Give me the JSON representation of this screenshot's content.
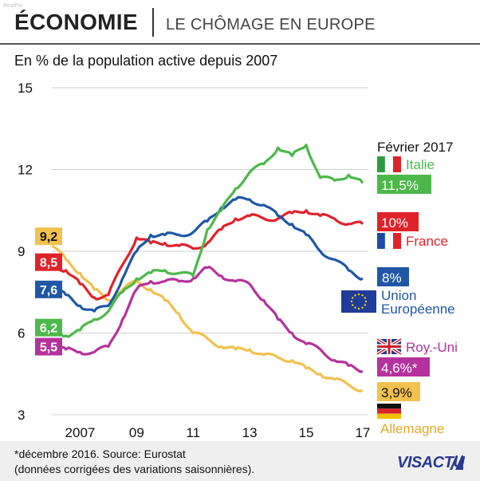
{
  "watermark": "RealPix",
  "header": {
    "section": "ÉCONOMIE",
    "topic": "LE CHÔMAGE EN EUROPE"
  },
  "subtitle": "En % de la population active depuis 2007",
  "footer": {
    "note": "*décembre 2016. Source: Eurostat",
    "note2": "(données corrigées des variations saisonnières).",
    "brand": "VISACTU"
  },
  "legend": {
    "date": "Février 2017",
    "italy": {
      "name": "Italie",
      "value": "11,5%"
    },
    "france": {
      "name": "France",
      "value": "10%"
    },
    "eu": {
      "name1": "Union",
      "name2": "Européenne",
      "value": "8%"
    },
    "uk": {
      "name": "Roy.-Uni",
      "value": "4,6%*"
    },
    "germany": {
      "name": "Allemagne",
      "value": "3,9%"
    }
  },
  "chart_data": {
    "type": "line",
    "x_tick_labels": [
      "2007",
      "09",
      "11",
      "13",
      "15",
      "17"
    ],
    "x_tick_values": [
      2007,
      2009,
      2011,
      2013,
      2015,
      2017
    ],
    "y_tick_values": [
      3,
      6,
      9,
      12,
      15
    ],
    "ylim": [
      3,
      15
    ],
    "xlim": [
      2006.0,
      2017.2
    ],
    "start_labels": {
      "germany": "9,2",
      "france": "8,5",
      "eu": "7,6",
      "italy": "6,2",
      "uk": "5,5"
    },
    "colors": {
      "italy": "#4cb84a",
      "france": "#e0222a",
      "eu": "#1f57a6",
      "uk": "#b5329c",
      "germany": "#f2c14e"
    },
    "series": [
      {
        "key": "germany",
        "name": "Allemagne",
        "x": [
          2006.0,
          2006.5,
          2007.0,
          2007.5,
          2008.0,
          2008.5,
          2009.0,
          2009.5,
          2010.0,
          2010.5,
          2011.0,
          2011.5,
          2012.0,
          2012.5,
          2013.0,
          2013.5,
          2014.0,
          2014.5,
          2015.0,
          2015.5,
          2016.0,
          2016.5,
          2017.0
        ],
        "y": [
          9.2,
          8.7,
          8.2,
          7.6,
          7.2,
          7.6,
          7.9,
          7.6,
          7.2,
          6.7,
          6.0,
          5.8,
          5.5,
          5.4,
          5.4,
          5.2,
          5.1,
          5.0,
          4.7,
          4.5,
          4.3,
          4.1,
          3.9
        ]
      },
      {
        "key": "france",
        "name": "France",
        "x": [
          2006.0,
          2006.5,
          2007.0,
          2007.5,
          2008.0,
          2008.5,
          2009.0,
          2009.5,
          2010.0,
          2010.5,
          2011.0,
          2011.5,
          2012.0,
          2012.5,
          2013.0,
          2013.5,
          2014.0,
          2014.5,
          2015.0,
          2015.5,
          2016.0,
          2016.5,
          2017.0
        ],
        "y": [
          8.5,
          8.3,
          7.8,
          7.3,
          7.4,
          8.5,
          9.5,
          9.3,
          9.3,
          9.2,
          9.1,
          9.3,
          9.8,
          10.2,
          10.3,
          10.2,
          10.2,
          10.4,
          10.5,
          10.3,
          10.2,
          10.0,
          10.0
        ]
      },
      {
        "key": "eu",
        "name": "Union Européenne",
        "x": [
          2006.0,
          2006.5,
          2007.0,
          2007.5,
          2008.0,
          2008.5,
          2009.0,
          2009.5,
          2010.0,
          2010.5,
          2011.0,
          2011.5,
          2012.0,
          2012.5,
          2013.0,
          2013.5,
          2014.0,
          2014.5,
          2015.0,
          2015.5,
          2016.0,
          2016.5,
          2017.0
        ],
        "y": [
          7.6,
          7.4,
          7.0,
          6.8,
          7.0,
          8.0,
          9.0,
          9.6,
          9.6,
          9.6,
          9.7,
          10.1,
          10.6,
          10.9,
          10.9,
          10.7,
          10.3,
          10.0,
          9.6,
          9.0,
          8.7,
          8.3,
          8.0
        ]
      },
      {
        "key": "italy",
        "name": "Italie",
        "x": [
          2006.0,
          2006.5,
          2007.0,
          2007.5,
          2008.0,
          2008.5,
          2009.0,
          2009.5,
          2010.0,
          2010.5,
          2011.0,
          2011.5,
          2012.0,
          2012.5,
          2013.0,
          2013.5,
          2014.0,
          2014.5,
          2015.0,
          2015.5,
          2016.0,
          2016.5,
          2017.0
        ],
        "y": [
          6.2,
          5.9,
          6.1,
          6.5,
          6.8,
          7.5,
          8.0,
          8.2,
          8.3,
          8.2,
          8.1,
          9.8,
          10.5,
          11.3,
          11.9,
          12.2,
          12.8,
          12.5,
          12.9,
          11.7,
          11.6,
          11.8,
          11.5
        ]
      },
      {
        "key": "uk",
        "name": "Roy.-Uni",
        "x": [
          2006.0,
          2006.5,
          2007.0,
          2007.5,
          2008.0,
          2008.5,
          2009.0,
          2009.5,
          2010.0,
          2010.5,
          2011.0,
          2011.5,
          2012.0,
          2012.5,
          2013.0,
          2013.5,
          2014.0,
          2014.5,
          2015.0,
          2015.5,
          2016.0,
          2016.5,
          2017.0
        ],
        "y": [
          5.5,
          5.4,
          5.3,
          5.3,
          5.5,
          6.5,
          7.6,
          7.9,
          7.9,
          7.9,
          8.0,
          8.4,
          8.1,
          7.9,
          7.8,
          7.2,
          6.5,
          6.0,
          5.6,
          5.4,
          5.0,
          4.8,
          4.6
        ]
      }
    ]
  }
}
